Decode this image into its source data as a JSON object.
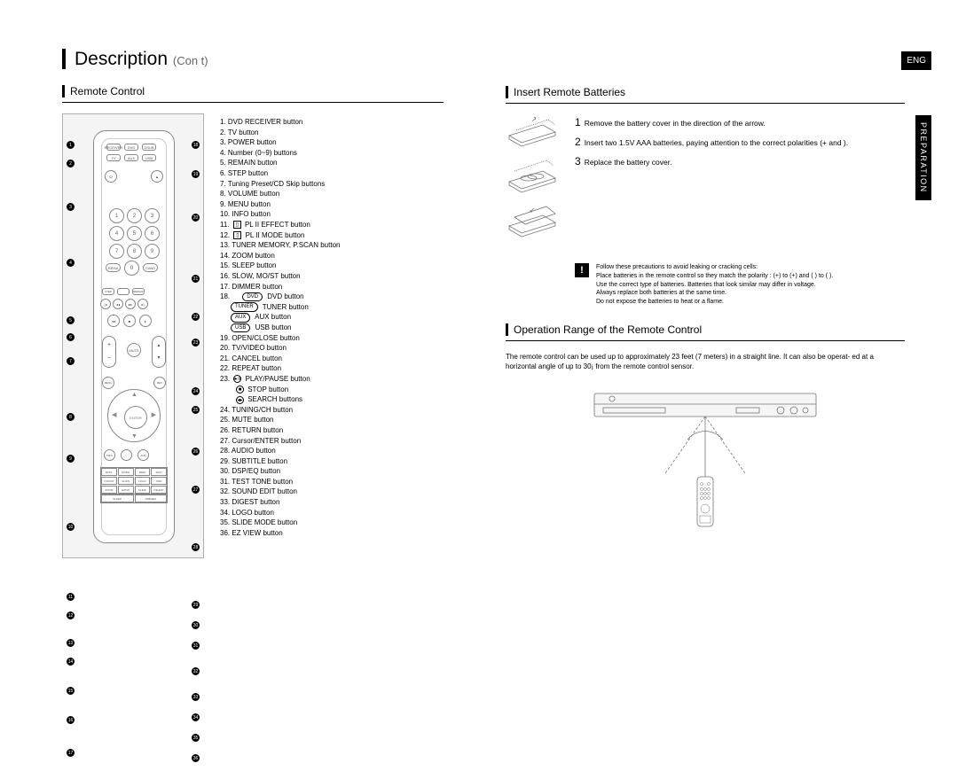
{
  "page_title": "Description",
  "page_title_cont": "(Con t)",
  "left_section_heading": "Remote Control",
  "eng_badge": "ENG",
  "prep_tab": "PREPARATION",
  "button_list": [
    {
      "n": "1.",
      "t": "DVD RECEIVER button"
    },
    {
      "n": "2.",
      "t": "TV button"
    },
    {
      "n": "3.",
      "t": "POWER button"
    },
    {
      "n": "4.",
      "t": "Number (0~9) buttons"
    },
    {
      "n": "5.",
      "t": "REMAIN button"
    },
    {
      "n": "6.",
      "t": "STEP button"
    },
    {
      "n": "7.",
      "t": "Tuning Preset/CD Skip buttons"
    },
    {
      "n": "8.",
      "t": "VOLUME button"
    },
    {
      "n": "9.",
      "t": "MENU button"
    },
    {
      "n": "10.",
      "t": "INFO button"
    },
    {
      "n": "11.",
      "t": "PL II EFFECT button",
      "sym": "▯"
    },
    {
      "n": "12.",
      "t": "PL II MODE button",
      "sym": "▯"
    },
    {
      "n": "13.",
      "t": "TUNER MEMORY, P.SCAN button"
    },
    {
      "n": "14.",
      "t": "ZOOM button"
    },
    {
      "n": "15.",
      "t": "SLEEP button"
    },
    {
      "n": "16.",
      "t": "SLOW, MO/ST button"
    },
    {
      "n": "17.",
      "t": "DIMMER button"
    },
    {
      "n": "18.",
      "t": "DVD button",
      "pill": "DVD"
    },
    {
      "n": "",
      "t": "TUNER button",
      "pill": "TUNER"
    },
    {
      "n": "",
      "t": "AUX button",
      "pill": "AUX"
    },
    {
      "n": "",
      "t": "USB button",
      "pill": "USB"
    },
    {
      "n": "19.",
      "t": "OPEN/CLOSE button"
    },
    {
      "n": "20.",
      "t": "TV/VIDEO button"
    },
    {
      "n": "21.",
      "t": "CANCEL button"
    },
    {
      "n": "22.",
      "t": "REPEAT button"
    },
    {
      "n": "23.",
      "t": "PLAY/PAUSE button",
      "sym": "▸॥",
      "round": true
    },
    {
      "n": "",
      "t": "STOP button",
      "sym": "■",
      "round": true
    },
    {
      "n": "",
      "t": "SEARCH buttons",
      "sym": "◂▸",
      "round": true
    },
    {
      "n": "24.",
      "t": "TUNING/CH button"
    },
    {
      "n": "25.",
      "t": "MUTE button"
    },
    {
      "n": "26.",
      "t": "RETURN button"
    },
    {
      "n": "27.",
      "t": "Cursor/ENTER button"
    },
    {
      "n": "28.",
      "t": "AUDIO button"
    },
    {
      "n": "29.",
      "t": "SUBTITLE button"
    },
    {
      "n": "30.",
      "t": "DSP/EQ button"
    },
    {
      "n": "31.",
      "t": "TEST TONE button"
    },
    {
      "n": "32.",
      "t": "SOUND EDIT button"
    },
    {
      "n": "33.",
      "t": "DIGEST button"
    },
    {
      "n": "34.",
      "t": "LOGO button"
    },
    {
      "n": "35.",
      "t": "SLIDE MODE button"
    },
    {
      "n": "36.",
      "t": "EZ VIEW button"
    }
  ],
  "left_callouts": [
    "1",
    "2",
    "3",
    "4",
    "5",
    "6",
    "7",
    "8",
    "9",
    "10",
    "11",
    "12",
    "13",
    "14",
    "15",
    "16",
    "17"
  ],
  "right_callouts": [
    "18",
    "19",
    "20",
    "21",
    "22",
    "23",
    "24",
    "25",
    "26",
    "27",
    "28",
    "29",
    "30",
    "31",
    "32",
    "33",
    "34",
    "35",
    "36"
  ],
  "left_callout_gaps": [
    0,
    2,
    30,
    44,
    46,
    0,
    8,
    44,
    28,
    58,
    60,
    2,
    12,
    2,
    14,
    14,
    18
  ],
  "right_callout_gaps": [
    0,
    14,
    30,
    50,
    24,
    10,
    36,
    2,
    28,
    24,
    46,
    46,
    4,
    4,
    10,
    10,
    4,
    4,
    4
  ],
  "insert_heading": "Insert Remote Batteries",
  "steps": [
    {
      "n": "1",
      "t": "Remove the battery cover in the direction of the arrow."
    },
    {
      "n": "2",
      "t": "Insert two 1.5V AAA batteries, paying attention to the correct polarities (+ and  )."
    },
    {
      "n": "3",
      "t": "Replace the battery cover."
    }
  ],
  "caution_title": "Follow these precautions to avoid leaking or cracking cells:",
  "caution_lines": [
    "Place batteries in the remote control so they match the polarity : (+) to (+) and (  ) to (  ).",
    "Use the correct type of batteries. Batteries that look similar may differ in voltage.",
    "Always replace both batteries at the same time.",
    "Do not expose the batteries to heat or a flame."
  ],
  "op_heading": "Operation Range of the Remote Control",
  "op_text": "The remote control can be used up to approximately 23 feet (7 meters) in a straight line. It can also be operat- ed at a horizontal angle of up to 30¡ from the remote control sensor.",
  "page_num_left": "",
  "page_num_right": "",
  "colors": {
    "black": "#000000",
    "gray_border": "#b0b0b0",
    "gray_bg": "#f4f4f4",
    "drawing_stroke": "#757575"
  }
}
